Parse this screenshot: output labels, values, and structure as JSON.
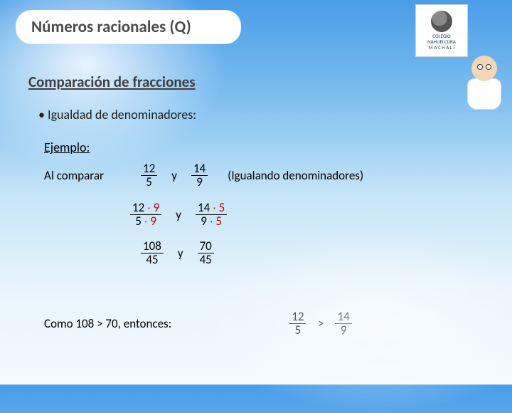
{
  "title": "Números racionales (Q)",
  "logo": {
    "line1": "COLEGIO",
    "line2": "NAHUELCURA",
    "line3": "M A C H A L Í"
  },
  "subtitle": "Comparación de fracciones",
  "bullet": "•  Igualdad de denominadores:",
  "ejemplo": "Ejemplo:",
  "compare_label": "Al comparar",
  "f1": {
    "n": "12",
    "d": "5"
  },
  "f2": {
    "n": "14",
    "d": "9"
  },
  "y": "y",
  "note": "(Igualando denominadores)",
  "step2": {
    "a": {
      "n1": "12",
      "op": "∙",
      "n2": "9",
      "d1": "5",
      "d2": "9"
    },
    "b": {
      "n1": "14",
      "op": "∙",
      "n2": "5",
      "d1": "9",
      "d2": "5"
    }
  },
  "step3": {
    "a": {
      "n": "108",
      "d": "45"
    },
    "b": {
      "n": "70",
      "d": "45"
    }
  },
  "conclusion_prefix": "Como  108 > 70,  entonces:",
  "gt": ">",
  "colors": {
    "title_text": "#4b4b4b",
    "body_text": "#000000",
    "accent_red": "#c00000",
    "bg_gradient_top": "#4a9de8",
    "bg_gradient_bottom": "#f5fafe"
  },
  "fontsizes": {
    "title": 23,
    "subtitle": 21,
    "body": 17,
    "bullet": 18
  }
}
